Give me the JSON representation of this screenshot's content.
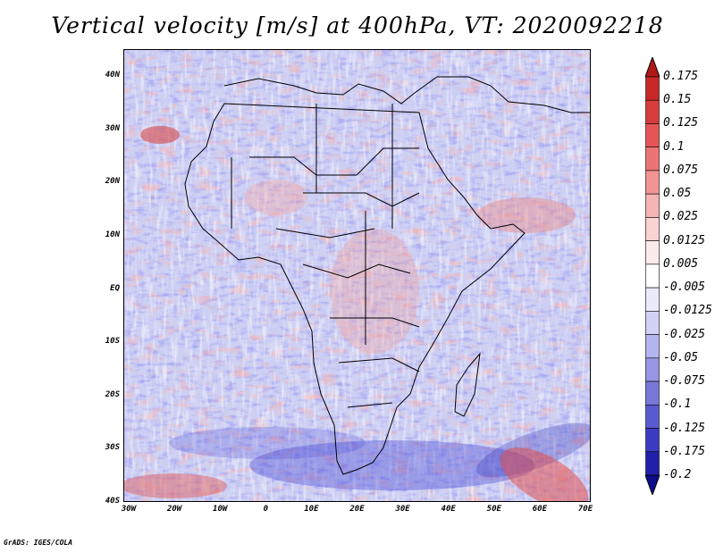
{
  "title": "Vertical velocity [m/s] at 400hPa, VT: 2020092218",
  "footer": "GrADS: IGES/COLA",
  "map": {
    "lon_ticks": [
      "30W",
      "20W",
      "10W",
      "0",
      "10E",
      "20E",
      "30E",
      "40E",
      "50E",
      "60E",
      "70E"
    ],
    "lat_ticks": [
      "40N",
      "30N",
      "20N",
      "10N",
      "EQ",
      "10S",
      "20S",
      "30S",
      "40S"
    ]
  },
  "colorbar": {
    "labels": [
      "0.175",
      "0.15",
      "0.125",
      "0.1",
      "0.075",
      "0.05",
      "0.025",
      "0.0125",
      "0.005",
      "-0.005",
      "-0.0125",
      "-0.025",
      "-0.05",
      "-0.075",
      "-0.1",
      "-0.125",
      "-0.175",
      "-0.2"
    ],
    "colors": [
      "#b01818",
      "#c82828",
      "#d83c3c",
      "#e45656",
      "#ec7474",
      "#f29494",
      "#f6b4b4",
      "#fad2d2",
      "#fdeaea",
      "#ffffff",
      "#eaeafc",
      "#d2d2f6",
      "#b4b4ee",
      "#9696e4",
      "#7878da",
      "#5a5ad0",
      "#3c3cc2",
      "#2020a8",
      "#0e0e8a"
    ]
  }
}
